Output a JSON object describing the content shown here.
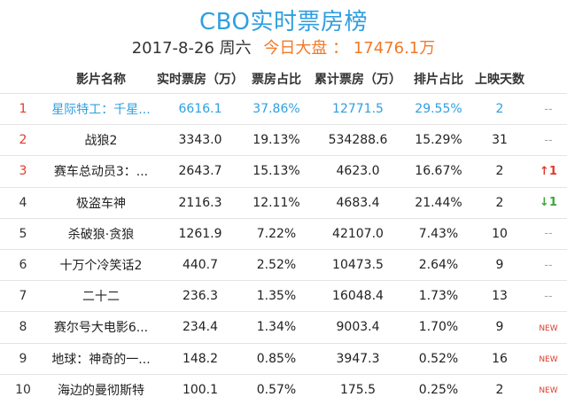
{
  "header": {
    "title": "CBO实时票房榜",
    "date": "2017-8-26 周六",
    "today_label": "今日大盘 ： 17476.1万"
  },
  "columns": [
    "影片名称",
    "实时票房（万）",
    "票房占比",
    "累计票房（万）",
    "排片占比",
    "上映天数"
  ],
  "rows": [
    {
      "rank": "1",
      "name": "星际特工：千星...",
      "realtime": "6616.1",
      "share": "37.86%",
      "total": "12771.5",
      "screen": "29.55%",
      "days": "2",
      "trend": "--"
    },
    {
      "rank": "2",
      "name": "战狼2",
      "realtime": "3343.0",
      "share": "19.13%",
      "total": "534288.6",
      "screen": "15.29%",
      "days": "31",
      "trend": "--"
    },
    {
      "rank": "3",
      "name": "赛车总动员3：...",
      "realtime": "2643.7",
      "share": "15.13%",
      "total": "4623.0",
      "screen": "16.67%",
      "days": "2",
      "trend": "↑1"
    },
    {
      "rank": "4",
      "name": "极盗车神",
      "realtime": "2116.3",
      "share": "12.11%",
      "total": "4683.4",
      "screen": "21.44%",
      "days": "2",
      "trend": "↓1"
    },
    {
      "rank": "5",
      "name": "杀破狼·贪狼",
      "realtime": "1261.9",
      "share": "7.22%",
      "total": "42107.0",
      "screen": "7.43%",
      "days": "10",
      "trend": "--"
    },
    {
      "rank": "6",
      "name": "十万个冷笑话2",
      "realtime": "440.7",
      "share": "2.52%",
      "total": "10473.5",
      "screen": "2.64%",
      "days": "9",
      "trend": "--"
    },
    {
      "rank": "7",
      "name": "二十二",
      "realtime": "236.3",
      "share": "1.35%",
      "total": "16048.4",
      "screen": "1.73%",
      "days": "13",
      "trend": "--"
    },
    {
      "rank": "8",
      "name": "赛尔号大电影6...",
      "realtime": "234.4",
      "share": "1.34%",
      "total": "9003.4",
      "screen": "1.70%",
      "days": "9",
      "trend": "NEW"
    },
    {
      "rank": "9",
      "name": "地球：神奇的一...",
      "realtime": "148.2",
      "share": "0.85%",
      "total": "3947.3",
      "screen": "0.52%",
      "days": "16",
      "trend": "NEW"
    },
    {
      "rank": "10",
      "name": "海边的曼彻斯特",
      "realtime": "100.1",
      "share": "0.57%",
      "total": "175.5",
      "screen": "0.25%",
      "days": "2",
      "trend": "NEW"
    }
  ]
}
